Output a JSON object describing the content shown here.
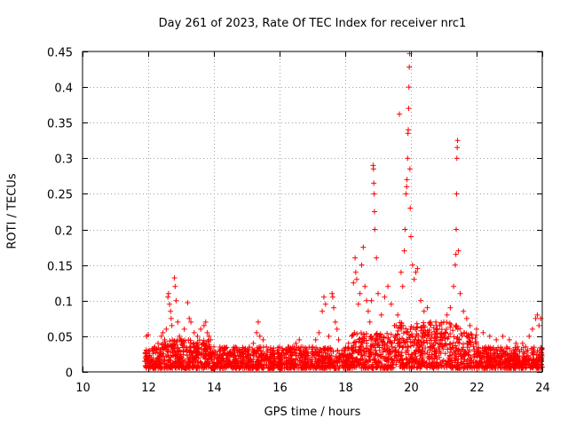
{
  "chart_data": {
    "type": "scatter",
    "title": "Day 261 of 2023, Rate Of TEC Index for receiver nrc1",
    "xlabel": "GPS time / hours",
    "ylabel": "ROTI / TECUs",
    "xlim": [
      10,
      24
    ],
    "ylim": [
      0,
      0.45
    ],
    "xticks": [
      10,
      12,
      14,
      16,
      18,
      20,
      22,
      24
    ],
    "yticks": [
      0,
      0.05,
      0.1,
      0.15,
      0.2,
      0.25,
      0.3,
      0.35,
      0.4,
      0.45
    ],
    "xtick_labels": [
      "10",
      "12",
      "14",
      "16",
      "18",
      "20",
      "22",
      "24"
    ],
    "ytick_labels": [
      "0",
      "0.05",
      "0.1",
      "0.15",
      "0.2",
      "0.25",
      "0.3",
      "0.35",
      "0.4",
      "0.45"
    ],
    "grid": true,
    "marker": "+",
    "marker_color": "#ff0000",
    "series": [
      {
        "name": "nrc1",
        "points": [
          [
            11.9,
            0.015
          ],
          [
            11.95,
            0.05
          ],
          [
            12.0,
            0.052
          ],
          [
            12.05,
            0.03
          ],
          [
            12.1,
            0.02
          ],
          [
            12.2,
            0.035
          ],
          [
            12.3,
            0.04
          ],
          [
            12.35,
            0.025
          ],
          [
            12.4,
            0.05
          ],
          [
            12.45,
            0.055
          ],
          [
            12.5,
            0.045
          ],
          [
            12.55,
            0.06
          ],
          [
            12.6,
            0.105
          ],
          [
            12.62,
            0.11
          ],
          [
            12.65,
            0.095
          ],
          [
            12.68,
            0.085
          ],
          [
            12.7,
            0.075
          ],
          [
            12.72,
            0.065
          ],
          [
            12.8,
            0.132
          ],
          [
            12.82,
            0.12
          ],
          [
            12.85,
            0.1
          ],
          [
            12.9,
            0.07
          ],
          [
            12.95,
            0.05
          ],
          [
            13.0,
            0.045
          ],
          [
            13.1,
            0.06
          ],
          [
            13.2,
            0.097
          ],
          [
            13.25,
            0.075
          ],
          [
            13.3,
            0.07
          ],
          [
            13.4,
            0.055
          ],
          [
            13.5,
            0.05
          ],
          [
            13.6,
            0.06
          ],
          [
            13.7,
            0.065
          ],
          [
            13.75,
            0.07
          ],
          [
            13.8,
            0.055
          ],
          [
            13.85,
            0.05
          ],
          [
            13.9,
            0.045
          ],
          [
            14.0,
            0.035
          ],
          [
            14.2,
            0.03
          ],
          [
            14.5,
            0.025
          ],
          [
            14.8,
            0.03
          ],
          [
            15.0,
            0.028
          ],
          [
            15.2,
            0.04
          ],
          [
            15.3,
            0.055
          ],
          [
            15.35,
            0.07
          ],
          [
            15.4,
            0.05
          ],
          [
            15.5,
            0.045
          ],
          [
            15.6,
            0.035
          ],
          [
            15.8,
            0.03
          ],
          [
            16.0,
            0.025
          ],
          [
            16.2,
            0.03
          ],
          [
            16.4,
            0.035
          ],
          [
            16.5,
            0.04
          ],
          [
            16.6,
            0.045
          ],
          [
            16.8,
            0.03
          ],
          [
            17.0,
            0.035
          ],
          [
            17.1,
            0.045
          ],
          [
            17.2,
            0.055
          ],
          [
            17.3,
            0.085
          ],
          [
            17.35,
            0.105
          ],
          [
            17.4,
            0.095
          ],
          [
            17.5,
            0.05
          ],
          [
            17.6,
            0.11
          ],
          [
            17.62,
            0.105
          ],
          [
            17.65,
            0.09
          ],
          [
            17.7,
            0.07
          ],
          [
            17.75,
            0.06
          ],
          [
            17.8,
            0.045
          ],
          [
            17.9,
            0.03
          ],
          [
            18.0,
            0.03
          ],
          [
            18.1,
            0.04
          ],
          [
            18.2,
            0.05
          ],
          [
            18.25,
            0.125
          ],
          [
            18.3,
            0.16
          ],
          [
            18.32,
            0.14
          ],
          [
            18.35,
            0.13
          ],
          [
            18.4,
            0.095
          ],
          [
            18.45,
            0.11
          ],
          [
            18.5,
            0.15
          ],
          [
            18.55,
            0.175
          ],
          [
            18.6,
            0.12
          ],
          [
            18.65,
            0.1
          ],
          [
            18.7,
            0.085
          ],
          [
            18.75,
            0.07
          ],
          [
            18.8,
            0.1
          ],
          [
            18.85,
            0.29
          ],
          [
            18.86,
            0.285
          ],
          [
            18.87,
            0.265
          ],
          [
            18.88,
            0.25
          ],
          [
            18.89,
            0.225
          ],
          [
            18.9,
            0.2
          ],
          [
            18.95,
            0.16
          ],
          [
            19.0,
            0.11
          ],
          [
            19.1,
            0.08
          ],
          [
            19.2,
            0.105
          ],
          [
            19.3,
            0.12
          ],
          [
            19.4,
            0.095
          ],
          [
            19.5,
            0.065
          ],
          [
            19.6,
            0.08
          ],
          [
            19.65,
            0.362
          ],
          [
            19.7,
            0.14
          ],
          [
            19.75,
            0.12
          ],
          [
            19.8,
            0.17
          ],
          [
            19.82,
            0.2
          ],
          [
            19.85,
            0.25
          ],
          [
            19.87,
            0.26
          ],
          [
            19.88,
            0.27
          ],
          [
            19.9,
            0.3
          ],
          [
            19.91,
            0.335
          ],
          [
            19.92,
            0.34
          ],
          [
            19.93,
            0.37
          ],
          [
            19.94,
            0.4
          ],
          [
            19.95,
            0.428
          ],
          [
            19.96,
            0.447
          ],
          [
            19.97,
            0.285
          ],
          [
            19.98,
            0.23
          ],
          [
            20.0,
            0.19
          ],
          [
            20.05,
            0.15
          ],
          [
            20.1,
            0.13
          ],
          [
            20.15,
            0.14
          ],
          [
            20.2,
            0.145
          ],
          [
            20.3,
            0.1
          ],
          [
            20.4,
            0.085
          ],
          [
            20.5,
            0.09
          ],
          [
            20.6,
            0.07
          ],
          [
            20.8,
            0.06
          ],
          [
            21.0,
            0.07
          ],
          [
            21.1,
            0.08
          ],
          [
            21.2,
            0.09
          ],
          [
            21.3,
            0.12
          ],
          [
            21.35,
            0.15
          ],
          [
            21.37,
            0.165
          ],
          [
            21.38,
            0.2
          ],
          [
            21.39,
            0.25
          ],
          [
            21.4,
            0.3
          ],
          [
            21.41,
            0.315
          ],
          [
            21.42,
            0.325
          ],
          [
            21.45,
            0.17
          ],
          [
            21.5,
            0.11
          ],
          [
            21.6,
            0.085
          ],
          [
            21.7,
            0.075
          ],
          [
            21.8,
            0.065
          ],
          [
            22.0,
            0.06
          ],
          [
            22.2,
            0.055
          ],
          [
            22.4,
            0.05
          ],
          [
            22.6,
            0.045
          ],
          [
            22.8,
            0.05
          ],
          [
            23.0,
            0.045
          ],
          [
            23.2,
            0.04
          ],
          [
            23.4,
            0.04
          ],
          [
            23.5,
            0.035
          ],
          [
            23.6,
            0.05
          ],
          [
            23.7,
            0.06
          ],
          [
            23.8,
            0.075
          ],
          [
            23.85,
            0.08
          ],
          [
            23.9,
            0.065
          ],
          [
            23.95,
            0.075
          ]
        ]
      }
    ]
  }
}
